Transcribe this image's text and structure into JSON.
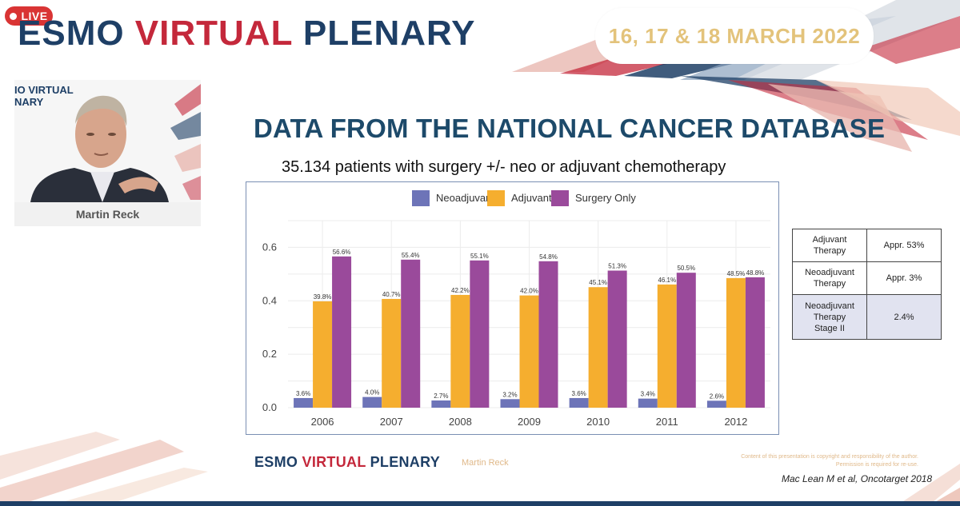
{
  "header": {
    "live_label": "LIVE",
    "event_title_part1": "ESMO ",
    "event_title_part2": "VIRTUAL ",
    "event_title_part3": "PLENARY",
    "dates": "16, 17 & 18 MARCH 2022"
  },
  "speaker": {
    "mini_title_line1": "IO VIRTUAL",
    "mini_title_line2": "NARY",
    "name": "Martin Reck"
  },
  "slide": {
    "title": "DATA FROM THE NATIONAL CANCER DATABASE",
    "subtitle": "35.134 patients with surgery +/- neo or adjuvant chemotherapy"
  },
  "chart_data": {
    "type": "bar",
    "categories": [
      "2006",
      "2007",
      "2008",
      "2009",
      "2010",
      "2011",
      "2012"
    ],
    "series": [
      {
        "name": "Neoadjuvant",
        "color": "#6d74b8",
        "values": [
          0.036,
          0.04,
          0.027,
          0.032,
          0.036,
          0.034,
          0.026
        ],
        "labels": [
          "3.6%",
          "4.0%",
          "2.7%",
          "3.2%",
          "3.6%",
          "3.4%",
          "2.6%"
        ]
      },
      {
        "name": "Adjuvant",
        "color": "#f5ae2f",
        "values": [
          0.398,
          0.407,
          0.422,
          0.42,
          0.451,
          0.461,
          0.485
        ],
        "labels": [
          "39.8%",
          "40.7%",
          "42.2%",
          "42.0%",
          "45.1%",
          "46.1%",
          "48.5%"
        ]
      },
      {
        "name": "Surgery Only",
        "color": "#9a4a9b",
        "values": [
          0.566,
          0.554,
          0.551,
          0.548,
          0.513,
          0.505,
          0.488
        ],
        "labels": [
          "56.6%",
          "55.4%",
          "55.1%",
          "54.8%",
          "51.3%",
          "50.5%",
          "48.8%"
        ]
      }
    ],
    "yticks": [
      "0.0",
      "0.2",
      "0.4",
      "0.6"
    ],
    "ylim": [
      0,
      0.7
    ],
    "legend_position": "top",
    "grid": true
  },
  "table": {
    "rows": [
      {
        "label": "Adjuvant Therapy",
        "value": "Appr. 53%"
      },
      {
        "label": "Neoadjuvant Therapy",
        "value": "Appr. 3%"
      },
      {
        "label": "Neoadjuvant Therapy Stage II",
        "value": "2.4%"
      }
    ]
  },
  "footer": {
    "logo_part1": "ESMO ",
    "logo_part2": "VIRTUAL ",
    "logo_part3": "PLENARY",
    "speaker": "Martin Reck",
    "copyright_line1": "Content of this presentation is copyright and responsibility of the author.",
    "copyright_line2": "Permission is required for re-use.",
    "citation": "Mac Lean M et al, Oncotarget 2018"
  },
  "colors": {
    "brand_blue": "#1e3f66",
    "brand_red": "#c4283b",
    "live_red": "#d93434",
    "date_gold": "#e3c37b"
  }
}
